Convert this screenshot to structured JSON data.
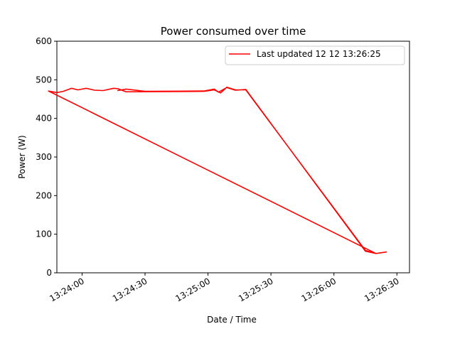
{
  "chart_data": {
    "type": "line",
    "title": "Power consumed over time",
    "xlabel": "Date / Time",
    "ylabel": "Power (W)",
    "xlim": [
      "13:23:48",
      "13:26:36"
    ],
    "ylim": [
      0,
      600
    ],
    "x_ticks": [
      "13:24:00",
      "13:24:30",
      "13:25:00",
      "13:25:30",
      "13:26:00",
      "13:26:30"
    ],
    "y_ticks": [
      "0",
      "100",
      "200",
      "300",
      "400",
      "500",
      "600"
    ],
    "grid": false,
    "legend_position": "top-right",
    "series": [
      {
        "name": "Last updated 12 12 13:26:25",
        "color": "#ff0000",
        "points": [
          {
            "x": "13:24:17",
            "y": 472
          },
          {
            "x": "13:24:21",
            "y": 476
          },
          {
            "x": "13:24:30",
            "y": 470
          },
          {
            "x": "13:24:58",
            "y": 471
          },
          {
            "x": "13:25:03",
            "y": 476
          },
          {
            "x": "13:25:05",
            "y": 468
          },
          {
            "x": "13:25:09",
            "y": 480
          },
          {
            "x": "13:25:13",
            "y": 473
          },
          {
            "x": "13:25:18",
            "y": 475
          },
          {
            "x": "13:26:15",
            "y": 56
          },
          {
            "x": "13:26:20",
            "y": 50
          },
          {
            "x": "13:26:25",
            "y": 54
          },
          {
            "x": "13:26:20",
            "y": 50
          },
          {
            "x": "13:23:44",
            "y": 471
          },
          {
            "x": "13:23:48",
            "y": 467
          },
          {
            "x": "13:23:51",
            "y": 470
          },
          {
            "x": "13:23:55",
            "y": 478
          },
          {
            "x": "13:23:58",
            "y": 474
          },
          {
            "x": "13:24:02",
            "y": 478
          },
          {
            "x": "13:24:06",
            "y": 473
          },
          {
            "x": "13:24:10",
            "y": 472
          },
          {
            "x": "13:24:15",
            "y": 478
          },
          {
            "x": "13:24:17",
            "y": 477
          },
          {
            "x": "13:24:21",
            "y": 469
          },
          {
            "x": "13:24:58",
            "y": 470
          },
          {
            "x": "13:25:03",
            "y": 474
          },
          {
            "x": "13:25:06",
            "y": 466
          },
          {
            "x": "13:25:09",
            "y": 481
          },
          {
            "x": "13:25:13",
            "y": 474
          },
          {
            "x": "13:25:18",
            "y": 474
          },
          {
            "x": "13:26:15",
            "y": 58
          },
          {
            "x": "13:26:20",
            "y": 50
          },
          {
            "x": "13:23:44",
            "y": 471
          }
        ]
      }
    ]
  }
}
